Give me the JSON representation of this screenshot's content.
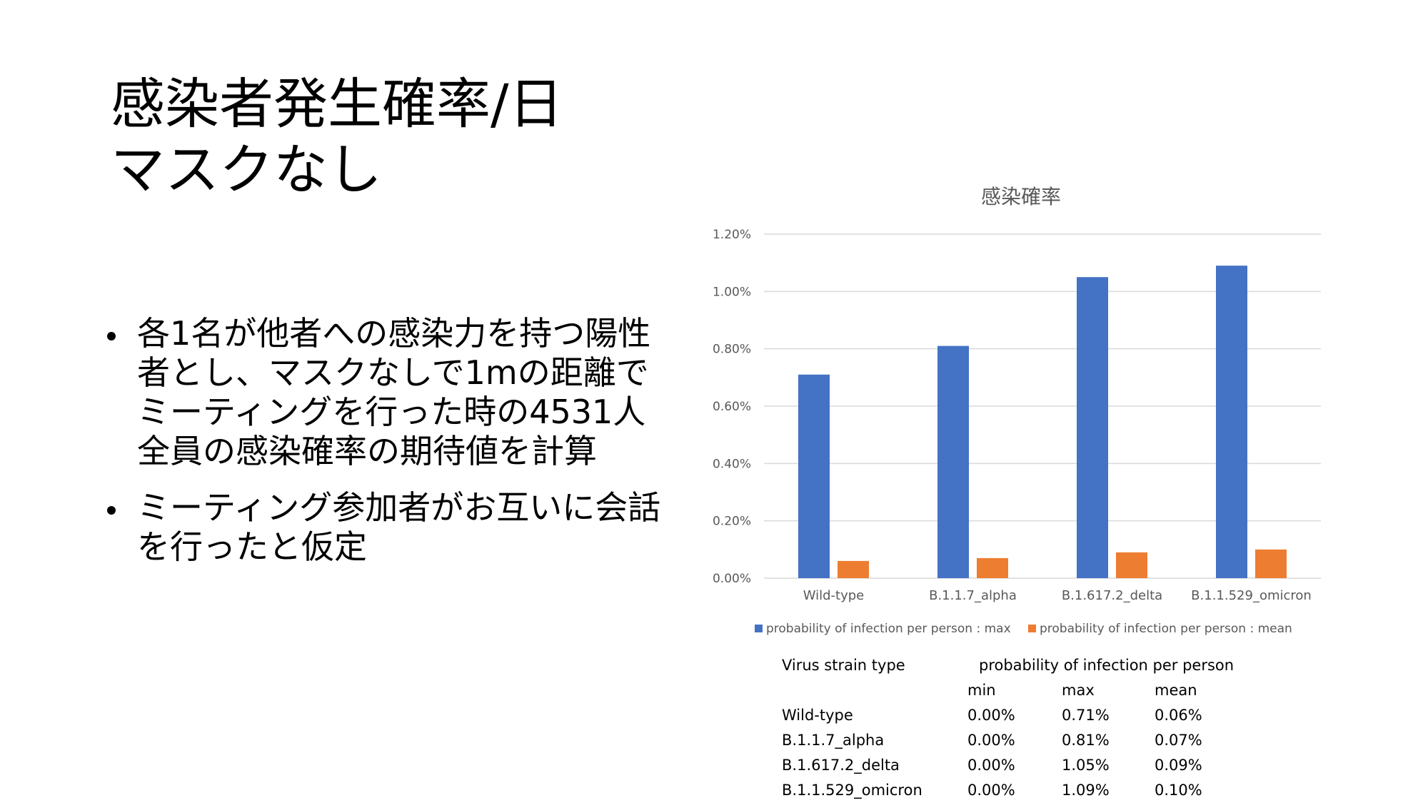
{
  "slide": {
    "title_line1": "感染者発生確率/日",
    "title_line2": "マスクなし",
    "bullets": [
      "各1名が他者への感染力を持つ陽性者とし、マスクなしで1mの距離でミーティングを行った時の4531人全員の感染確率の期待値を計算",
      "ミーティング参加者がお互いに会話を行ったと仮定"
    ]
  },
  "chart_data": {
    "type": "bar",
    "title": "感染確率",
    "categories": [
      "Wild-type",
      "B.1.1.7_alpha",
      "B.1.617.2_delta",
      "B.1.1.529_omicron"
    ],
    "series": [
      {
        "name": "probability of infection per person : max",
        "color": "#4472C4",
        "values": [
          0.71,
          0.81,
          1.05,
          1.09
        ]
      },
      {
        "name": "probability of infection per person : mean",
        "color": "#ED7D31",
        "values": [
          0.06,
          0.07,
          0.09,
          0.1
        ]
      }
    ],
    "ylim": [
      0,
      1.2
    ],
    "yticks": [
      "0.00%",
      "0.20%",
      "0.40%",
      "0.60%",
      "0.80%",
      "1.00%",
      "1.20%"
    ],
    "xlabel": "",
    "ylabel": "",
    "grid": true,
    "legend_position": "bottom"
  },
  "table": {
    "header_col": "Virus strain type",
    "header_group": "probability of infection per person",
    "sub_headers": [
      "min",
      "max",
      "mean"
    ],
    "rows": [
      [
        "Wild-type",
        "0.00%",
        "0.71%",
        "0.06%"
      ],
      [
        "B.1.1.7_alpha",
        "0.00%",
        "0.81%",
        "0.07%"
      ],
      [
        "B.1.617.2_delta",
        "0.00%",
        "1.05%",
        "0.09%"
      ],
      [
        "B.1.1.529_omicron",
        "0.00%",
        "1.09%",
        "0.10%"
      ]
    ]
  }
}
